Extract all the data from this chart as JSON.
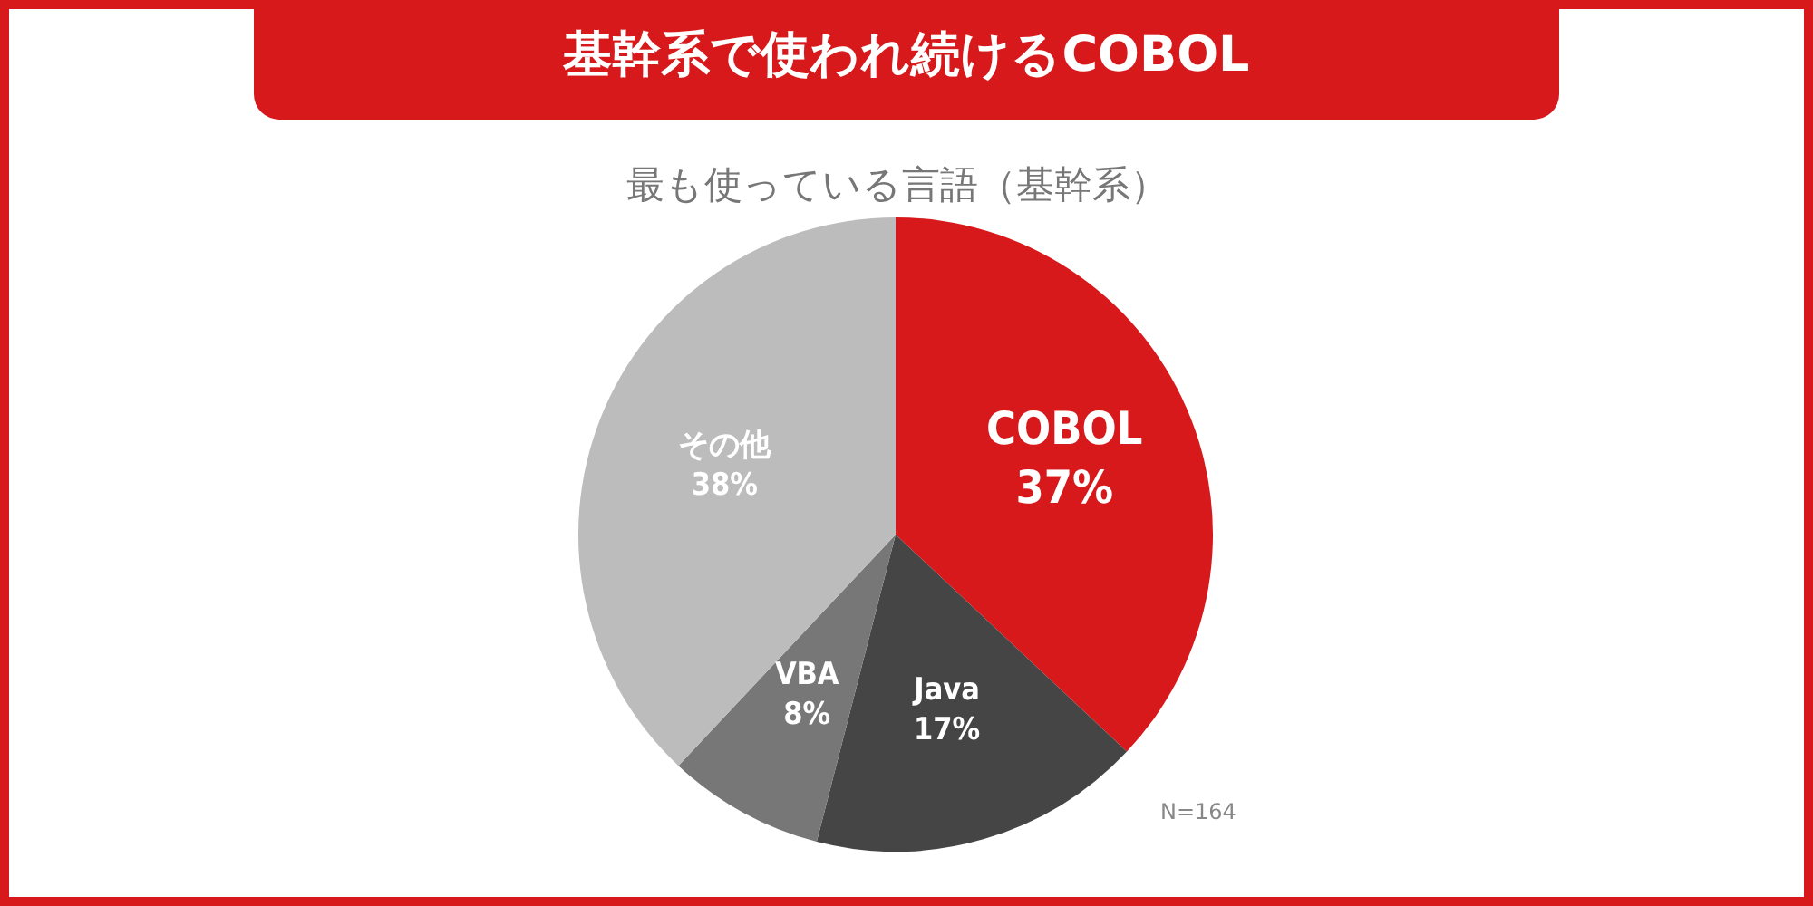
{
  "chart_data": {
    "type": "pie",
    "title": "基幹系で使われ続けるCOBOL",
    "subtitle": "最も使っている言語（基幹系）",
    "categories": [
      "COBOL",
      "Java",
      "VBA",
      "その他"
    ],
    "values": [
      37,
      17,
      8,
      38
    ],
    "value_labels": [
      "37%",
      "17%",
      "8%",
      "38%"
    ],
    "colors": [
      "#d7191c",
      "#454545",
      "#777777",
      "#bcbcbc"
    ],
    "legend": false,
    "annotations": [
      "N=164"
    ]
  }
}
